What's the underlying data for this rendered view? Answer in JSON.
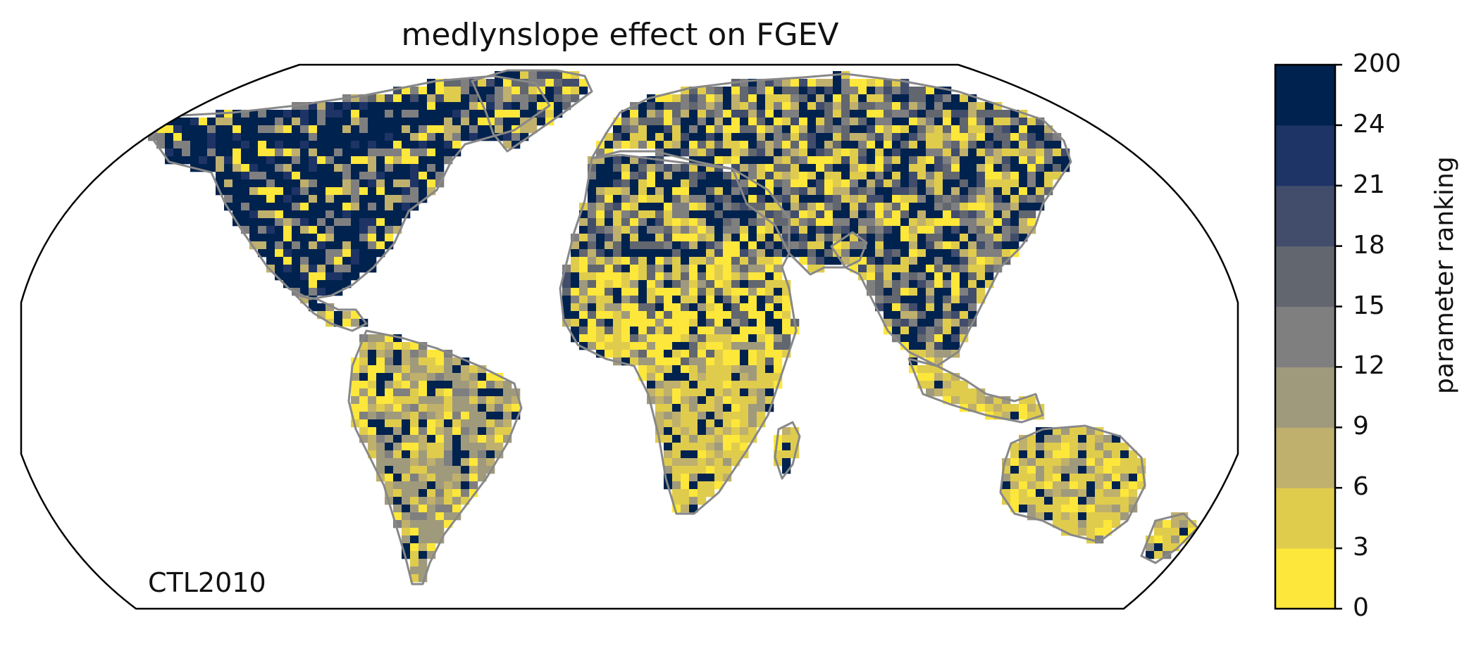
{
  "title": "medlynslope effect on FGEV",
  "run_label": "CTL2010",
  "colorbar": {
    "label": "parameter ranking",
    "tick_labels": [
      "0",
      "3",
      "6",
      "9",
      "12",
      "15",
      "18",
      "21",
      "24",
      "200"
    ],
    "bins": [
      {
        "from": "0",
        "to": "3",
        "color": "#fde73a"
      },
      {
        "from": "3",
        "to": "6",
        "color": "#e0cc4c"
      },
      {
        "from": "6",
        "to": "9",
        "color": "#bfb06d"
      },
      {
        "from": "9",
        "to": "12",
        "color": "#a09a7d"
      },
      {
        "from": "12",
        "to": "15",
        "color": "#7f7f80"
      },
      {
        "from": "15",
        "to": "18",
        "color": "#62666f"
      },
      {
        "from": "18",
        "to": "21",
        "color": "#414d6b"
      },
      {
        "from": "21",
        "to": "24",
        "color": "#1e3466"
      },
      {
        "from": "24",
        "to": "200",
        "color": "#00224e"
      }
    ]
  },
  "map": {
    "projection": "Robinson",
    "coastline_color": "#888888",
    "ocean_color": "#ffffff"
  }
}
